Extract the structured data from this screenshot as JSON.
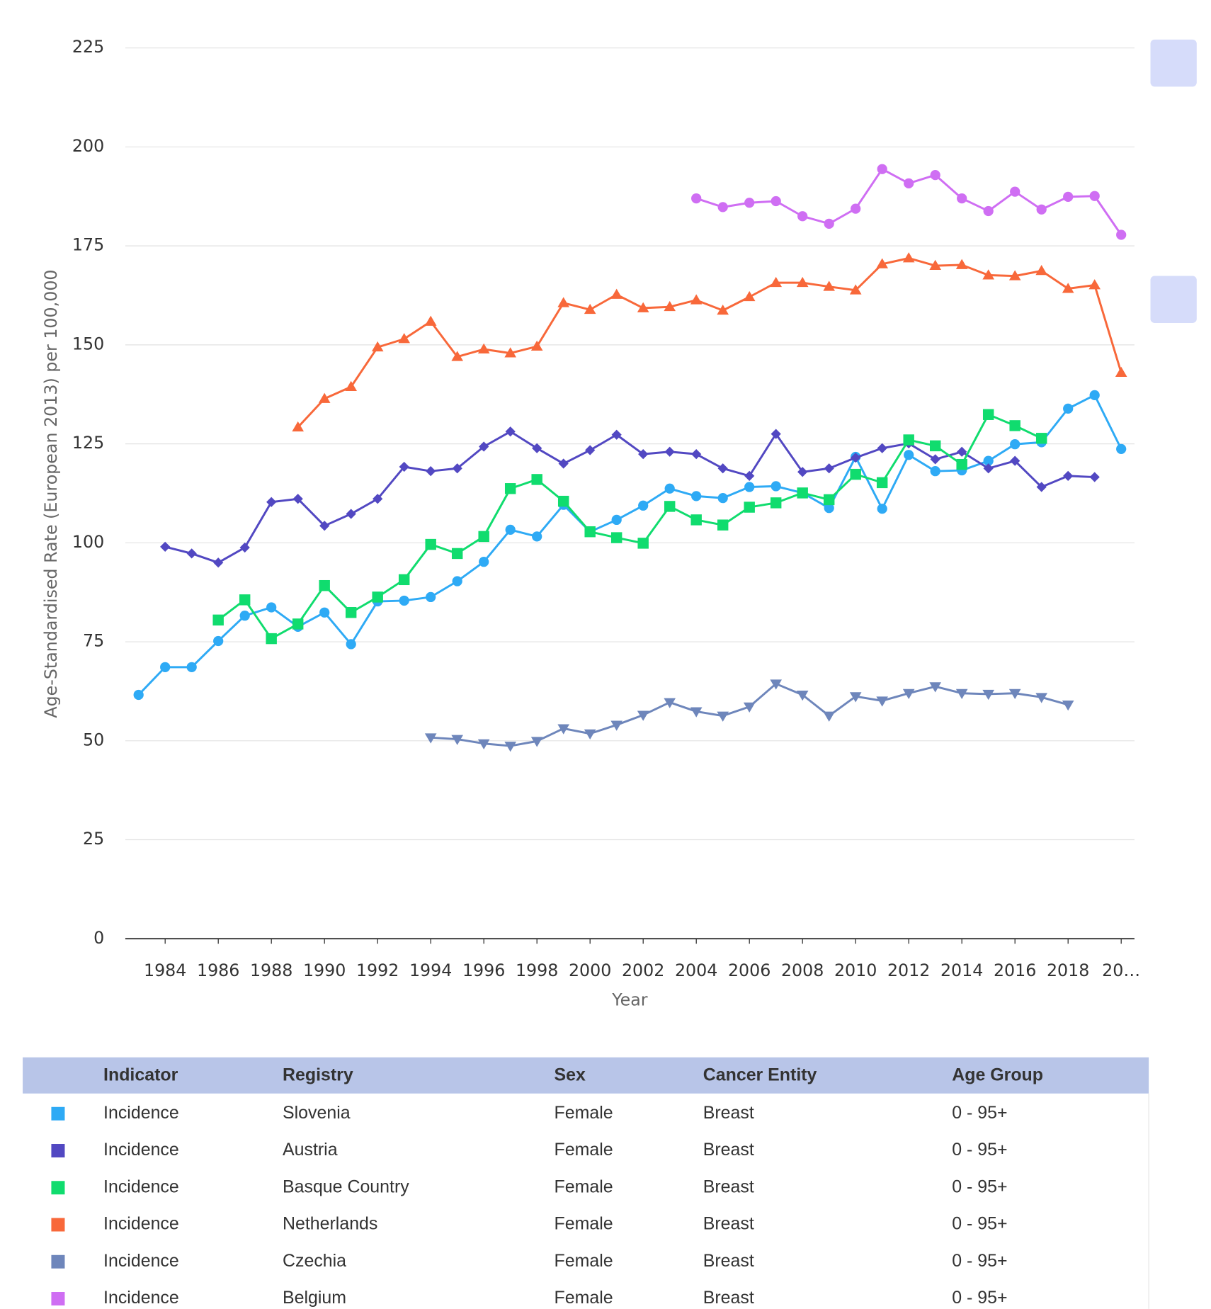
{
  "chart_data": {
    "type": "line",
    "y_label": "Age-Standardised Rate (European 2013) per 100,000",
    "x_label": "Year",
    "x": [
      1983,
      1984,
      1985,
      1986,
      1987,
      1988,
      1989,
      1990,
      1991,
      1992,
      1993,
      1994,
      1995,
      1996,
      1997,
      1998,
      1999,
      2000,
      2001,
      2002,
      2003,
      2004,
      2005,
      2006,
      2007,
      2008,
      2009,
      2010,
      2011,
      2012,
      2013,
      2014,
      2015,
      2016,
      2017,
      2018,
      2019,
      2020
    ],
    "xlim": [
      1982.5,
      2020.5
    ],
    "xticks": [
      1984,
      1986,
      1988,
      1990,
      1992,
      1994,
      1996,
      1998,
      2000,
      2002,
      2004,
      2006,
      2008,
      2010,
      2012,
      2014,
      2016,
      2018,
      {
        "value": 2020,
        "label": "20…"
      }
    ],
    "ylim": [
      0,
      225
    ],
    "yticks": [
      0,
      25,
      50,
      75,
      100,
      125,
      150,
      175,
      200,
      225
    ],
    "grid": true,
    "series": [
      {
        "name": "Slovenia",
        "color": "#2eaaf5",
        "marker": "circle",
        "values": [
          61.6,
          68.6,
          68.6,
          75.2,
          81.6,
          83.7,
          78.8,
          82.4,
          74.4,
          85.2,
          85.4,
          86.3,
          90.3,
          95.2,
          103.3,
          101.6,
          109.6,
          102.8,
          105.8,
          109.4,
          113.7,
          111.8,
          111.3,
          114.1,
          114.3,
          112.6,
          108.8,
          121.7,
          108.6,
          122.2,
          118.1,
          118.3,
          120.7,
          124.9,
          125.4,
          133.9,
          137.3,
          123.7
        ]
      },
      {
        "name": "Austria",
        "color": "#5248c2",
        "marker": "diamond",
        "values": [
          null,
          99.0,
          97.3,
          95.0,
          98.8,
          110.3,
          111.1,
          104.3,
          107.3,
          111.1,
          119.2,
          118.1,
          118.8,
          124.3,
          128.1,
          123.9,
          120.0,
          123.4,
          127.3,
          122.4,
          123.0,
          122.4,
          118.8,
          116.9,
          127.5,
          117.9,
          118.8,
          121.5,
          123.9,
          125.1,
          121.1,
          123.0,
          118.8,
          120.7,
          114.1,
          116.9,
          116.6,
          null
        ]
      },
      {
        "name": "Basque Country",
        "color": "#10dc6e",
        "marker": "square",
        "values": [
          null,
          null,
          null,
          80.5,
          85.6,
          75.8,
          79.5,
          89.2,
          82.4,
          86.3,
          90.7,
          99.6,
          97.3,
          101.6,
          113.7,
          116.0,
          110.5,
          102.8,
          101.3,
          99.9,
          109.2,
          105.8,
          104.5,
          109.0,
          110.1,
          112.6,
          110.9,
          117.3,
          115.2,
          126.0,
          124.5,
          119.8,
          132.4,
          129.6,
          126.4,
          null,
          null,
          null
        ]
      },
      {
        "name": "Netherlands",
        "color": "#f8683a",
        "marker": "triangle",
        "values": [
          null,
          null,
          null,
          null,
          null,
          null,
          129.2,
          136.4,
          139.4,
          149.4,
          151.5,
          155.9,
          147.0,
          148.9,
          147.9,
          149.6,
          160.6,
          158.9,
          162.7,
          159.3,
          159.6,
          161.3,
          158.7,
          162.1,
          165.7,
          165.7,
          164.7,
          163.8,
          170.4,
          171.9,
          170.0,
          170.2,
          167.6,
          167.4,
          168.7,
          164.2,
          165.1,
          143.0
        ]
      },
      {
        "name": "Czechia",
        "color": "#6e86bb",
        "marker": "triangle-down",
        "values": [
          null,
          null,
          null,
          null,
          null,
          null,
          null,
          null,
          null,
          null,
          null,
          50.8,
          50.4,
          49.3,
          48.7,
          49.9,
          53.1,
          51.8,
          54.0,
          56.5,
          59.7,
          57.4,
          56.3,
          58.6,
          64.4,
          61.6,
          56.3,
          61.2,
          60.1,
          62.0,
          63.7,
          62.0,
          61.8,
          62.0,
          61.0,
          59.1,
          null,
          null
        ]
      },
      {
        "name": "Belgium",
        "color": "#cf6ef3",
        "marker": "circle",
        "values": [
          null,
          null,
          null,
          null,
          null,
          null,
          null,
          null,
          null,
          null,
          null,
          null,
          null,
          null,
          null,
          null,
          null,
          null,
          null,
          null,
          null,
          187.0,
          184.8,
          185.9,
          186.3,
          182.5,
          180.6,
          184.4,
          194.4,
          190.8,
          192.9,
          187.0,
          183.8,
          188.7,
          184.2,
          187.4,
          187.6,
          177.8
        ]
      }
    ]
  },
  "table": {
    "header": [
      "Indicator",
      "Registry",
      "Sex",
      "Cancer Entity",
      "Age Group"
    ],
    "rows": [
      {
        "indicator": "Incidence",
        "sex": "Female",
        "cancer_entity": "Breast",
        "age_group": "0 - 95+"
      },
      {
        "indicator": "Incidence",
        "sex": "Female",
        "cancer_entity": "Breast",
        "age_group": "0 - 95+"
      },
      {
        "indicator": "Incidence",
        "sex": "Female",
        "cancer_entity": "Breast",
        "age_group": "0 - 95+"
      },
      {
        "indicator": "Incidence",
        "sex": "Female",
        "cancer_entity": "Breast",
        "age_group": "0 - 95+"
      },
      {
        "indicator": "Incidence",
        "sex": "Female",
        "cancer_entity": "Breast",
        "age_group": "0 - 95+"
      },
      {
        "indicator": "Incidence",
        "sex": "Female",
        "cancer_entity": "Breast",
        "age_group": "0 - 95+"
      }
    ]
  }
}
